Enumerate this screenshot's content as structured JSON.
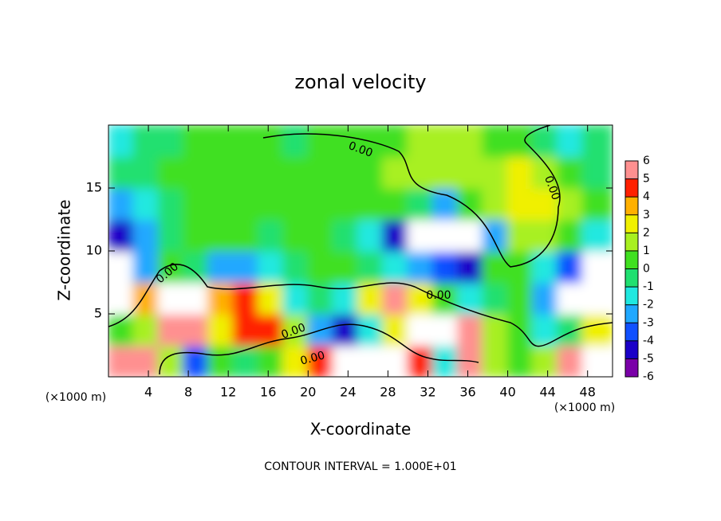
{
  "chart_data": {
    "type": "heatmap",
    "title": "zonal velocity",
    "xlabel": "X-coordinate",
    "ylabel": "Z-coordinate",
    "x_unit_label": "(×1000 m)",
    "y_unit_label": "(×1000 m)",
    "footer": "CONTOUR INTERVAL = 1.000E+01",
    "contour_labels": [
      "0.00",
      "0.00",
      "0.00",
      "0.00",
      "0.00",
      "0.00"
    ],
    "xlim": [
      0,
      50.5
    ],
    "ylim": [
      0,
      20
    ],
    "xticks": [
      4,
      8,
      12,
      16,
      20,
      24,
      28,
      32,
      36,
      40,
      44,
      48
    ],
    "yticks": [
      5,
      10,
      15
    ],
    "x": [
      1.25,
      3.75,
      6.25,
      8.75,
      11.25,
      13.75,
      16.25,
      18.75,
      21.25,
      23.75,
      26.25,
      28.75,
      31.25,
      33.75,
      36.25,
      38.75,
      41.25,
      43.75,
      46.25,
      48.75
    ],
    "y": [
      1.25,
      3.75,
      6.25,
      8.75,
      11.25,
      13.75,
      16.25,
      18.75
    ],
    "values": [
      [
        6,
        5,
        1,
        -4,
        0,
        -1,
        0,
        2,
        4,
        7,
        8,
        7,
        4,
        -2,
        6,
        1,
        0,
        1,
        5,
        7
      ],
      [
        0,
        1,
        5,
        5,
        2,
        4,
        4,
        1,
        -3,
        -5,
        -2,
        2,
        7,
        8,
        5,
        1,
        0,
        -2,
        -1,
        2
      ],
      [
        7,
        3,
        8,
        7,
        3,
        4,
        2,
        -2,
        -1,
        -2,
        2,
        5,
        2,
        0,
        -2,
        -1,
        0,
        -3,
        7,
        8
      ],
      [
        7,
        -3,
        0,
        -1,
        -3,
        -3,
        -2,
        -1,
        0,
        0,
        -1,
        -2,
        -3,
        -4,
        -5,
        0,
        0,
        -2,
        -4,
        7
      ],
      [
        -5,
        -3,
        -1,
        0,
        0,
        0,
        -1,
        0,
        0,
        -1,
        -2,
        -5,
        -8,
        -8,
        -7,
        -3,
        1,
        1,
        0,
        -2
      ],
      [
        -3,
        -2,
        -1,
        0,
        0,
        0,
        0,
        0,
        0,
        0,
        0,
        0,
        -1,
        -3,
        0,
        1,
        2,
        2,
        1,
        0
      ],
      [
        -1,
        -1,
        0,
        0,
        0,
        0,
        0,
        0,
        0,
        0,
        0,
        1,
        1,
        1,
        1,
        1,
        2,
        1,
        0,
        -1
      ],
      [
        -2,
        -1,
        -1,
        0,
        0,
        0,
        0,
        -1,
        0,
        0,
        0,
        0,
        1,
        1,
        1,
        0,
        0,
        -1,
        -2,
        -1
      ]
    ],
    "colorbar": {
      "ticks": [
        -6,
        -5,
        -4,
        -3,
        -2,
        -1,
        0,
        1,
        2,
        3,
        4,
        5,
        6
      ],
      "colors": [
        "#7a00a8",
        "#1a00c8",
        "#1050ff",
        "#20a8ff",
        "#20e8e0",
        "#20e070",
        "#40e020",
        "#a8f020",
        "#f0f000",
        "#ffb000",
        "#ff2000",
        "#ff9090"
      ],
      "out_of_range_color": "#ffffff"
    }
  }
}
